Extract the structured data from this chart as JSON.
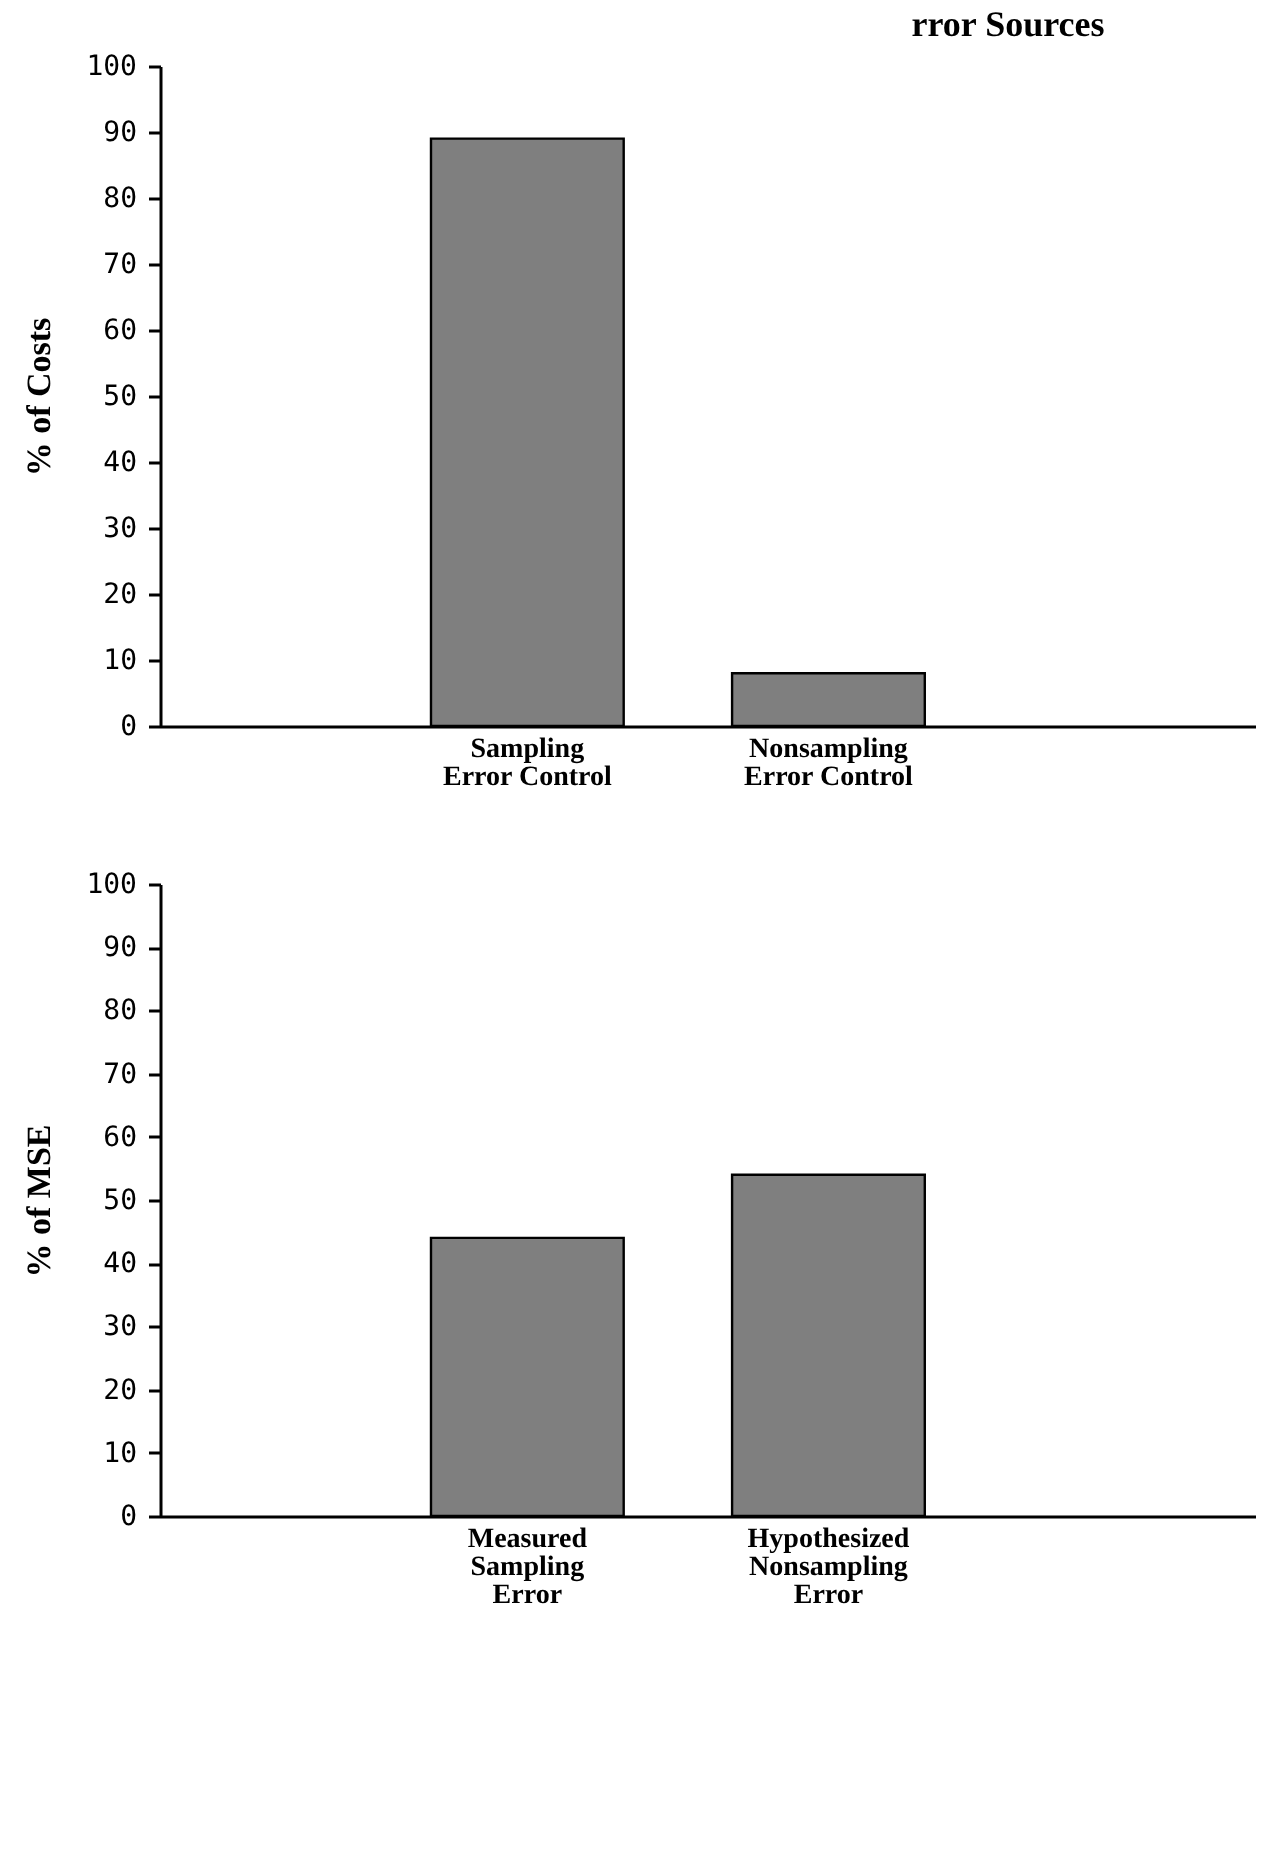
{
  "chart_data": [
    {
      "type": "bar",
      "title": "rror Sources",
      "ylabel": "% of Costs",
      "categories": [
        "Sampling Error Control",
        "Nonsampling Error Control"
      ],
      "values": [
        89,
        8
      ],
      "color": "#7f7f7f",
      "ylim": [
        0,
        100
      ],
      "yticks": [
        0,
        10,
        20,
        30,
        40,
        50,
        60,
        70,
        80,
        90,
        100
      ]
    },
    {
      "type": "bar",
      "ylabel": "% of MSE",
      "categories": [
        "Measured Sampling Error",
        "Hypothesized Nonsampling Error"
      ],
      "values": [
        44,
        54
      ],
      "color": "#7f7f7f",
      "ylim": [
        0,
        100
      ],
      "yticks": [
        0,
        10,
        20,
        30,
        40,
        50,
        60,
        70,
        80,
        90,
        100
      ]
    }
  ]
}
